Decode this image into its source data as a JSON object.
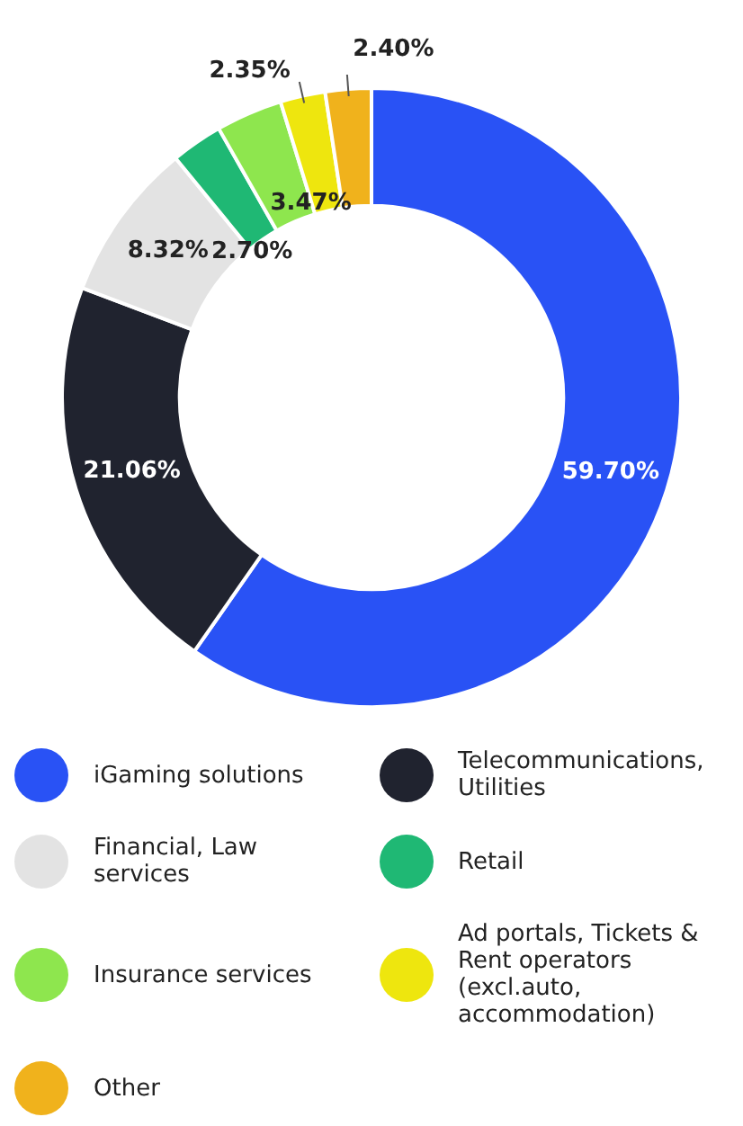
{
  "chart_data": {
    "type": "donut",
    "categories": [
      "iGaming solutions",
      "Telecommunications, Utilities",
      "Financial, Law services",
      "Retail",
      "Insurance services",
      "Ad portals, Tickets & Rent operators (excl.auto, accommodation)",
      "Other"
    ],
    "values": [
      59.7,
      21.06,
      8.32,
      2.7,
      3.47,
      2.35,
      2.4
    ],
    "colors": [
      "#2952f5",
      "#20232f",
      "#e3e3e3",
      "#1fb874",
      "#8ee64e",
      "#eee60e",
      "#f0b21c"
    ],
    "value_labels": [
      "59.70%",
      "21.06%",
      "8.32%",
      "2.70%",
      "3.47%",
      "2.35%",
      "2.40%"
    ],
    "legend": "bottom"
  }
}
